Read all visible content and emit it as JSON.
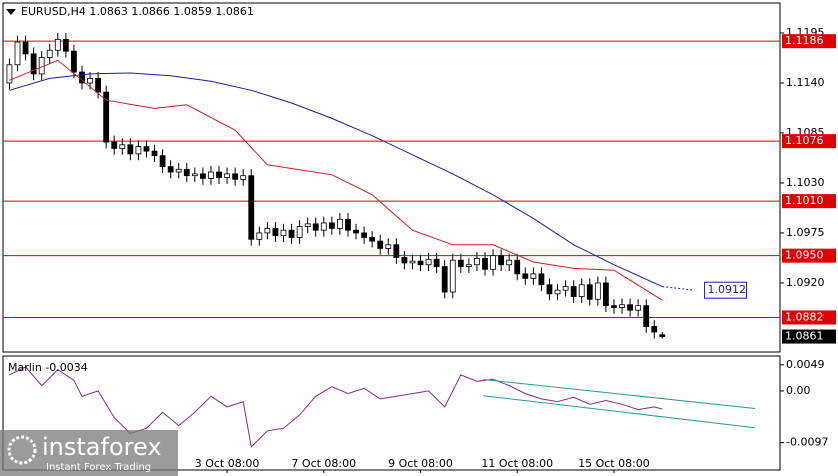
{
  "chart_data": {
    "type": "candlestick",
    "title": "EURUSD,H4  1.0863 1.0866 1.0859 1.0861",
    "xlim": [
      -0.8,
      95.6
    ],
    "xticks": [
      {
        "value": 27,
        "label": "3 Oct 08:00"
      },
      {
        "value": 39,
        "label": "7 Oct 08:00"
      },
      {
        "value": 51,
        "label": "9 Oct 08:00"
      },
      {
        "value": 63,
        "label": "11 Oct 08:00"
      },
      {
        "value": 75,
        "label": "15 Oct 08:00"
      }
    ],
    "ylim": [
      1.0844,
      1.1228
    ],
    "yticks": [
      1.1195,
      {
        "value": 1.114,
        "label": "1.1140"
      },
      1.1085,
      {
        "value": 1.103,
        "label": "1.1030"
      },
      1.0975,
      {
        "value": 1.092,
        "label": "1.0920"
      }
    ],
    "open": [
      1.114,
      1.116,
      1.1185,
      1.1172,
      1.115,
      1.1168,
      1.1176,
      1.1188,
      1.1175,
      1.1152,
      1.114,
      1.1145,
      1.113,
      1.1075,
      1.1068,
      1.1072,
      1.1062,
      1.107,
      1.1065,
      1.106,
      1.1048,
      1.1042,
      1.1045,
      1.1038,
      1.104,
      1.1035,
      1.1042,
      1.1036,
      1.104,
      1.1034,
      1.1038,
      1.0968,
      1.0975,
      1.098,
      1.0972,
      1.0978,
      1.097,
      1.0982,
      1.0985,
      1.0978,
      1.0986,
      1.098,
      1.099,
      1.0978,
      1.0975,
      1.097,
      1.0966,
      1.0958,
      1.0962,
      1.0948,
      1.0942,
      1.0944,
      1.094,
      1.0946,
      1.0938,
      1.091,
      1.0945,
      1.0938,
      1.094,
      1.0947,
      1.0935,
      1.095,
      1.094,
      1.0945,
      1.093,
      1.0925,
      1.093,
      1.0918,
      1.0908,
      1.0912,
      1.0916,
      1.0905,
      1.0918,
      1.0902,
      1.092,
      1.0895,
      1.0893,
      1.0896,
      1.089,
      1.0895,
      1.0872,
      1.0863
    ],
    "high": [
      1.1167,
      1.1192,
      1.1192,
      1.1179,
      1.1175,
      1.1183,
      1.1195,
      1.1195,
      1.1182,
      1.1159,
      1.1152,
      1.1152,
      1.1137,
      1.1082,
      1.1079,
      1.1079,
      1.1077,
      1.1077,
      1.1072,
      1.1067,
      1.1055,
      1.1052,
      1.1052,
      1.1047,
      1.1047,
      1.1049,
      1.1049,
      1.1047,
      1.1047,
      1.1045,
      1.1045,
      1.0982,
      1.0987,
      1.0987,
      1.0985,
      1.0985,
      1.0989,
      1.0992,
      1.0992,
      1.0993,
      1.0993,
      1.0997,
      1.0997,
      1.0985,
      1.0982,
      1.0977,
      1.0973,
      1.0969,
      1.0969,
      1.0955,
      1.0951,
      1.0951,
      1.0953,
      1.0953,
      1.0945,
      1.0952,
      1.0952,
      1.0947,
      1.0954,
      1.0954,
      1.0957,
      1.0957,
      1.0952,
      1.0952,
      1.0937,
      1.0937,
      1.0937,
      1.0925,
      1.0919,
      1.0923,
      1.0923,
      1.0925,
      1.0925,
      1.0927,
      1.0927,
      1.0902,
      1.0903,
      1.0903,
      1.0902,
      1.0902,
      1.0879,
      1.0866
    ],
    "low": [
      1.1133,
      1.1153,
      1.1165,
      1.1143,
      1.1143,
      1.1161,
      1.1169,
      1.1168,
      1.1145,
      1.1133,
      1.1133,
      1.1123,
      1.1068,
      1.1061,
      1.1061,
      1.1055,
      1.1055,
      1.1058,
      1.1053,
      1.1041,
      1.1035,
      1.1035,
      1.1031,
      1.1031,
      1.1028,
      1.1028,
      1.1029,
      1.1029,
      1.1027,
      1.1027,
      1.0961,
      1.0961,
      1.0968,
      1.0965,
      1.0965,
      1.0963,
      1.0963,
      1.0975,
      1.0971,
      1.0971,
      1.0973,
      1.0973,
      1.0971,
      1.0968,
      1.0963,
      1.0959,
      1.0951,
      1.0951,
      1.0941,
      1.0935,
      1.0935,
      1.0933,
      1.0933,
      1.0931,
      1.0903,
      1.0903,
      1.0931,
      1.0931,
      1.0933,
      1.0928,
      1.0928,
      1.0933,
      1.0933,
      1.0923,
      1.0918,
      1.0918,
      1.0911,
      1.0901,
      1.0901,
      1.0905,
      1.0898,
      1.0898,
      1.0895,
      1.0895,
      1.0888,
      1.0886,
      1.0886,
      1.0883,
      1.0883,
      1.0865,
      1.0859,
      1.0859
    ],
    "close": [
      1.116,
      1.1185,
      1.1172,
      1.115,
      1.1168,
      1.1176,
      1.1188,
      1.1175,
      1.1152,
      1.114,
      1.1145,
      1.113,
      1.1075,
      1.1068,
      1.1072,
      1.1062,
      1.107,
      1.1065,
      1.106,
      1.1048,
      1.1042,
      1.1045,
      1.1038,
      1.104,
      1.1035,
      1.1042,
      1.1036,
      1.104,
      1.1034,
      1.1038,
      1.0968,
      1.0975,
      1.098,
      1.0972,
      1.0978,
      1.097,
      1.0982,
      1.0985,
      1.0978,
      1.0986,
      1.098,
      1.099,
      1.0978,
      1.0975,
      1.097,
      1.0966,
      1.0958,
      1.0962,
      1.0948,
      1.0942,
      1.0944,
      1.094,
      1.0946,
      1.0938,
      1.091,
      1.0945,
      1.0938,
      1.094,
      1.0947,
      1.0935,
      1.095,
      1.094,
      1.0945,
      1.093,
      1.0925,
      1.093,
      1.0918,
      1.0908,
      1.0912,
      1.0916,
      1.0905,
      1.0918,
      1.0902,
      1.092,
      1.0895,
      1.0893,
      1.0896,
      1.089,
      1.0895,
      1.0872,
      1.0866,
      1.0861
    ],
    "lines": [
      {
        "color": "#1a1aa6",
        "x": [
          0,
          5,
          10,
          15,
          20,
          25,
          30,
          35,
          40,
          45,
          50,
          55,
          60,
          65,
          70,
          75,
          81
        ],
        "values": [
          1.1132,
          1.1145,
          1.115,
          1.1151,
          1.1148,
          1.1142,
          1.1132,
          1.1118,
          1.1101,
          1.1082,
          1.1061,
          1.104,
          1.1017,
          1.0991,
          1.0962,
          1.094,
          1.0916
        ],
        "projection": {
          "x": [
            81,
            85
          ],
          "values": [
            1.0916,
            1.0912
          ]
        }
      },
      {
        "color": "#c82020",
        "x": [
          0,
          6,
          12,
          18,
          22,
          28,
          32,
          40,
          45,
          50,
          55,
          60,
          65,
          70,
          75,
          81
        ],
        "values": [
          1.1143,
          1.1165,
          1.1121,
          1.1112,
          1.1116,
          1.1088,
          1.105,
          1.1039,
          1.1017,
          1.0978,
          1.0962,
          1.0962,
          1.0943,
          1.0936,
          1.0934,
          1.0901
        ]
      }
    ],
    "levels": [
      1.1186,
      1.1076,
      {
        "value": 1.101,
        "label": "1.1010"
      },
      {
        "value": 1.095,
        "label": "1.0950"
      },
      1.0882
    ],
    "level_color": "#e00000",
    "projection_label": 1.0912,
    "last_price": 1.0861,
    "indicator": {
      "type": "line",
      "title": "Marlin -0.0034",
      "color": "#8a2a8a",
      "ylim": [
        -0.01483,
        0.00655
      ],
      "yticks": [
        0.0049,
        {
          "value": 0,
          "label": "0.00"
        },
        -0.0097
      ],
      "x": [
        0,
        2,
        4,
        6,
        8,
        9,
        11,
        13,
        15,
        17,
        19,
        21,
        23,
        25,
        27,
        29,
        30,
        32,
        34,
        36,
        38,
        40,
        42,
        44,
        46,
        48,
        50,
        52,
        54,
        56,
        58,
        60,
        62,
        64,
        66,
        68,
        70,
        72,
        74,
        76,
        78,
        80,
        81
      ],
      "values": [
        0.003,
        0.0045,
        0.001,
        0.004,
        0.002,
        -0.001,
        0.0,
        -0.005,
        -0.008,
        -0.007,
        -0.004,
        -0.0065,
        -0.004,
        -0.001,
        -0.003,
        -0.002,
        -0.0105,
        -0.0075,
        -0.007,
        -0.0045,
        -0.001,
        0.0008,
        -0.0005,
        0.0005,
        -0.0015,
        -0.001,
        -0.0005,
        0.0,
        -0.003,
        0.003,
        0.0018,
        0.0022,
        0.001,
        -0.0005,
        -0.0015,
        -0.002,
        -0.0012,
        -0.0025,
        -0.0018,
        -0.0025,
        -0.0035,
        -0.003,
        -0.0034
      ],
      "channel_color": "#2a9a9a",
      "channel": [
        {
          "x": [
            58.8,
            92.5
          ],
          "values": [
            0.00215,
            -0.0033
          ]
        },
        {
          "x": [
            58.8,
            92.5
          ],
          "values": [
            -0.0009,
            -0.0069
          ]
        }
      ]
    },
    "watermark": {
      "name": "instaforex",
      "tagline": "Instant Forex Trading"
    }
  }
}
